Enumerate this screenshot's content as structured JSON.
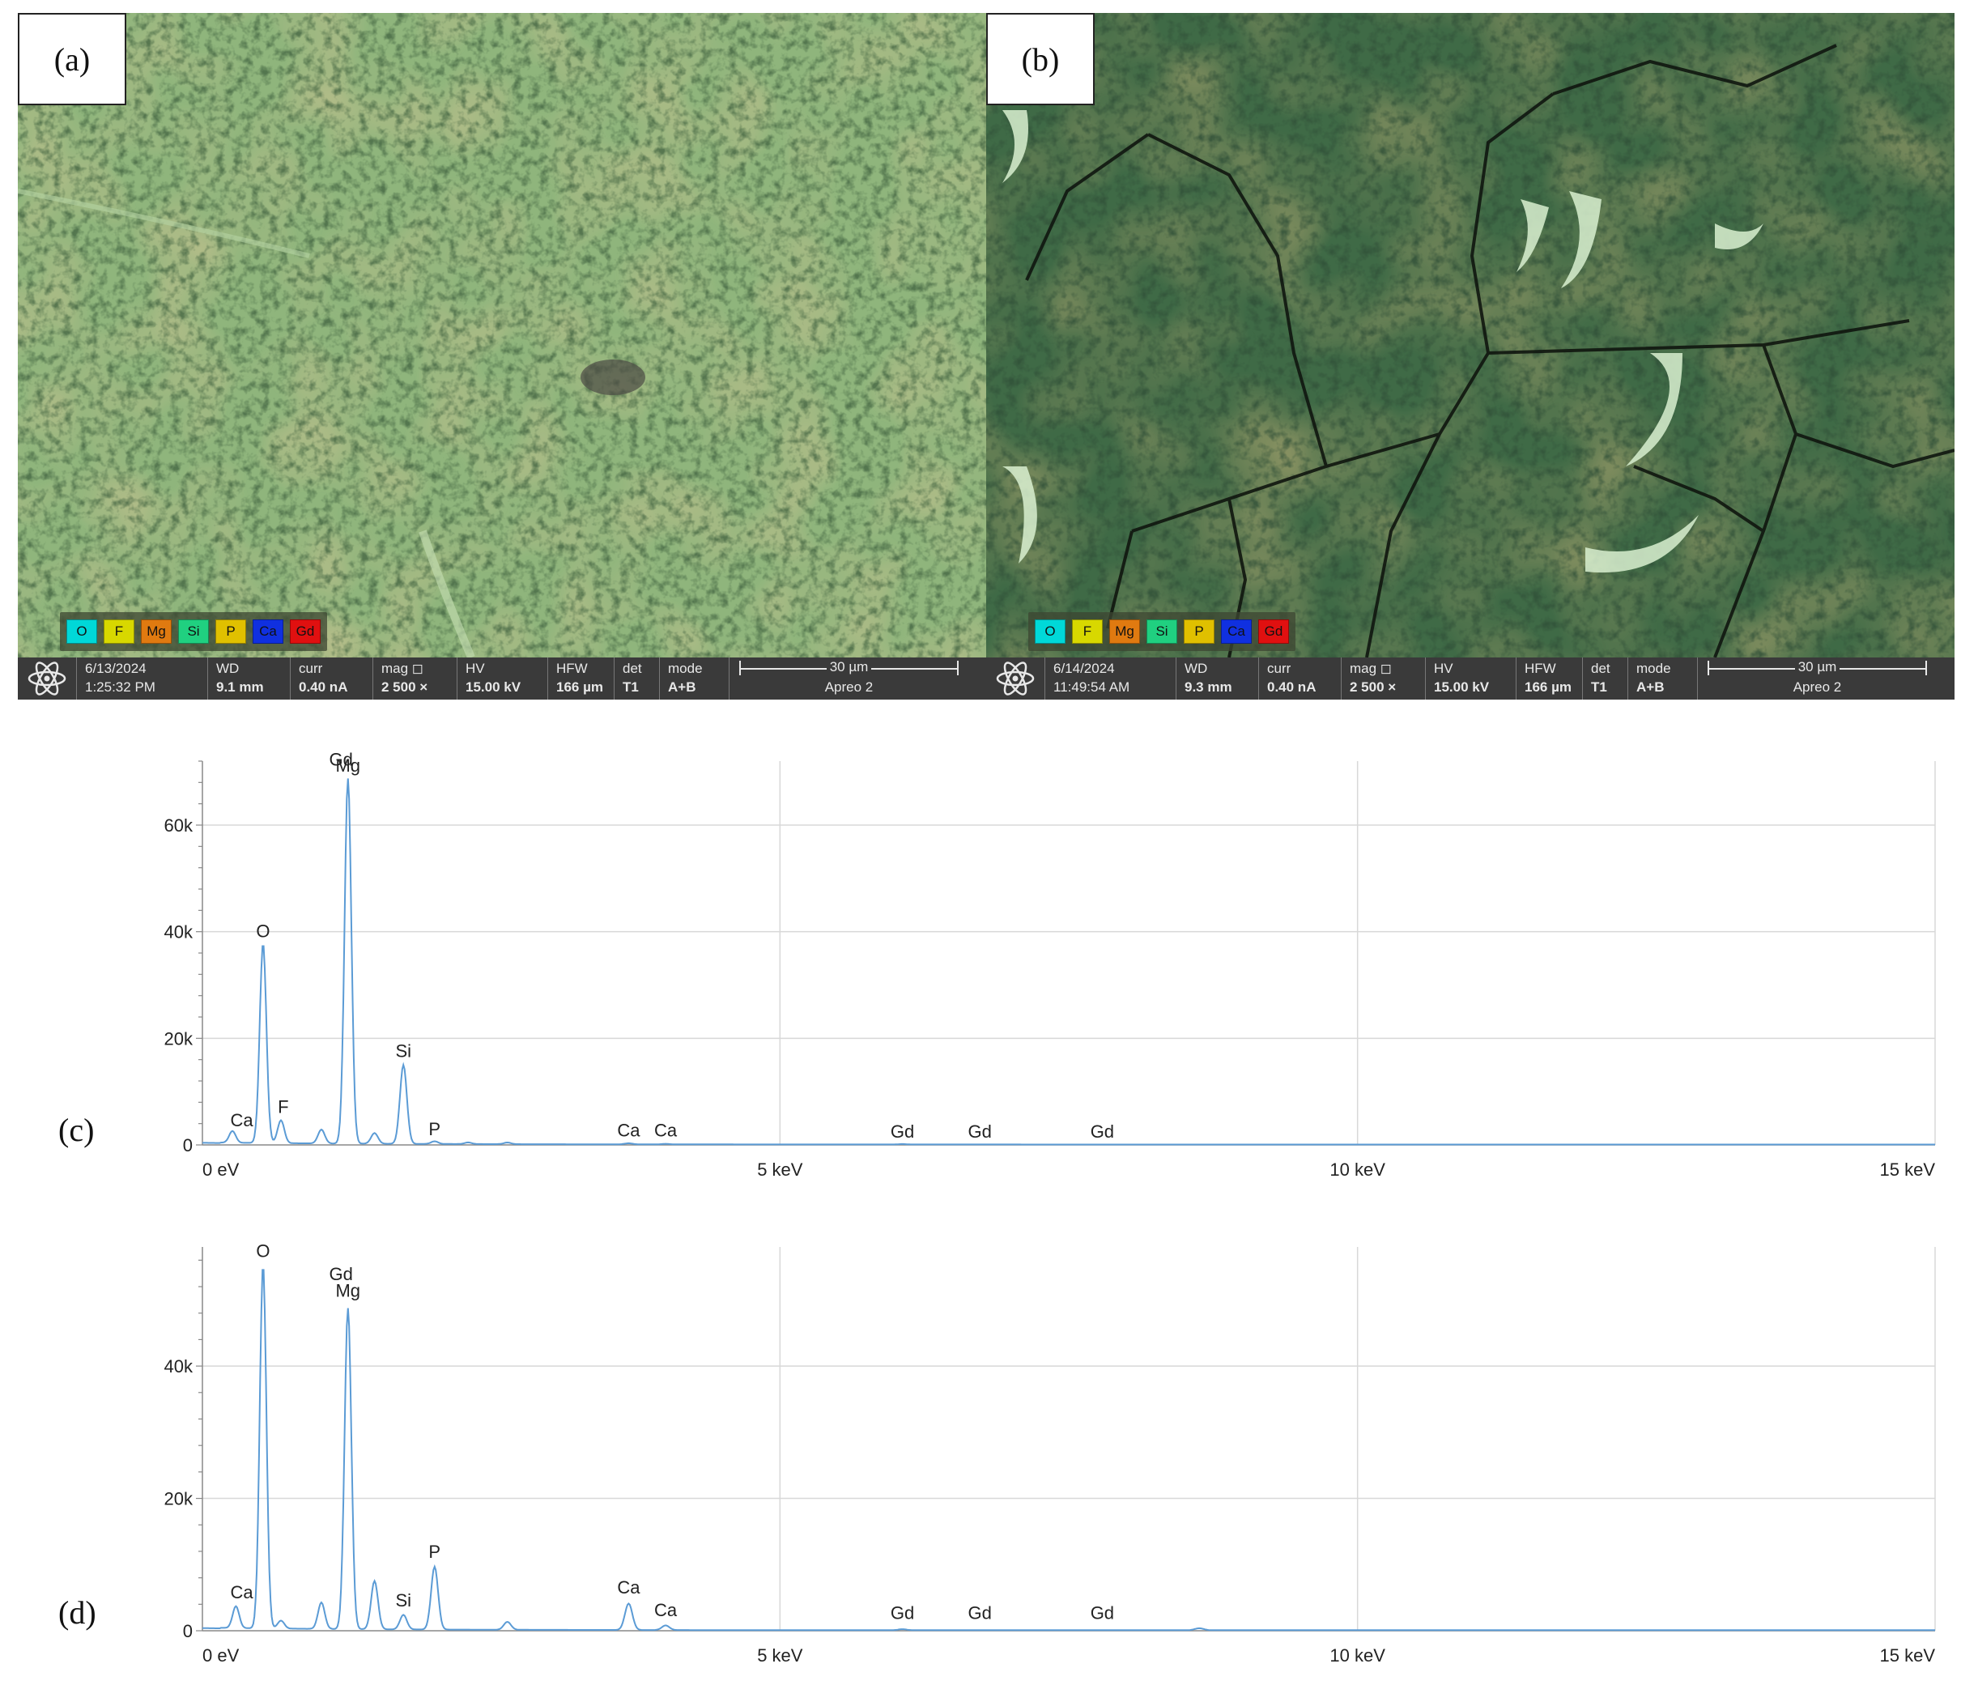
{
  "panels": [
    {
      "label": "(a)",
      "legend": [
        {
          "el": "O",
          "color": "#00d8d8"
        },
        {
          "el": "F",
          "color": "#d8d800"
        },
        {
          "el": "Mg",
          "color": "#e07a10"
        },
        {
          "el": "Si",
          "color": "#20d080"
        },
        {
          "el": "P",
          "color": "#e0c000"
        },
        {
          "el": "Ca",
          "color": "#1030e0"
        },
        {
          "el": "Gd",
          "color": "#e01010"
        }
      ],
      "info": {
        "date": "6/13/2024",
        "time": "1:25:32 PM",
        "wd_label": "WD",
        "wd": "9.1 mm",
        "curr_label": "curr",
        "curr": "0.40 nA",
        "mag_label": "mag ◻",
        "mag": "2 500 ×",
        "hv_label": "HV",
        "hv": "15.00 kV",
        "hfw_label": "HFW",
        "hfw": "166 µm",
        "det_label": "det",
        "det": "T1",
        "mode_label": "mode",
        "mode": "A+B",
        "scale": "30 µm",
        "instrument": "Apreo 2"
      }
    },
    {
      "label": "(b)",
      "legend": [
        {
          "el": "O",
          "color": "#00d8d8"
        },
        {
          "el": "F",
          "color": "#d8d800"
        },
        {
          "el": "Mg",
          "color": "#e07a10"
        },
        {
          "el": "Si",
          "color": "#20d080"
        },
        {
          "el": "P",
          "color": "#e0c000"
        },
        {
          "el": "Ca",
          "color": "#1030e0"
        },
        {
          "el": "Gd",
          "color": "#e01010"
        }
      ],
      "info": {
        "date": "6/14/2024",
        "time": "11:49:54 AM",
        "wd_label": "WD",
        "wd": "9.3 mm",
        "curr_label": "curr",
        "curr": "0.40 nA",
        "mag_label": "mag ◻",
        "mag": "2 500 ×",
        "hv_label": "HV",
        "hv": "15.00 kV",
        "hfw_label": "HFW",
        "hfw": "166 µm",
        "det_label": "det",
        "det": "T1",
        "mode_label": "mode",
        "mode": "A+B",
        "scale": "30 µm",
        "instrument": "Apreo 2"
      }
    }
  ],
  "chart_data": [
    {
      "type": "line",
      "tag": "(c)",
      "xlim": [
        0,
        15
      ],
      "ylim": [
        0,
        72000
      ],
      "x_ticks": [
        0,
        5,
        10,
        15
      ],
      "x_tick_labels": [
        "0 eV",
        "5 keV",
        "10 keV",
        "15 keV"
      ],
      "y_ticks": [
        0,
        20000,
        40000,
        60000
      ],
      "y_tick_labels": [
        "0",
        "20k",
        "40k",
        "60k"
      ],
      "grid": true,
      "line_color": "#5b9bd5",
      "peaks": [
        {
          "x": 0.26,
          "y": 2200
        },
        {
          "x": 0.525,
          "y": 37500
        },
        {
          "x": 0.68,
          "y": 4300
        },
        {
          "x": 1.03,
          "y": 2600
        },
        {
          "x": 1.26,
          "y": 68500
        },
        {
          "x": 1.49,
          "y": 2000
        },
        {
          "x": 1.74,
          "y": 14800
        },
        {
          "x": 2.01,
          "y": 500
        },
        {
          "x": 2.3,
          "y": 300
        },
        {
          "x": 2.64,
          "y": 300
        },
        {
          "x": 3.69,
          "y": 200
        },
        {
          "x": 4.01,
          "y": 100
        },
        {
          "x": 6.06,
          "y": 80
        }
      ],
      "labels": [
        {
          "text": "Gd",
          "x": 1.2,
          "y": 71200
        },
        {
          "text": "Mg",
          "x": 1.26,
          "y": 70000
        },
        {
          "text": "O",
          "x": 0.525,
          "y": 39000
        },
        {
          "text": "Si",
          "x": 1.74,
          "y": 16500
        },
        {
          "text": "F",
          "x": 0.7,
          "y": 6000
        },
        {
          "text": "Ca",
          "x": 0.34,
          "y": 3500
        },
        {
          "text": "P",
          "x": 2.01,
          "y": 1800
        },
        {
          "text": "Ca",
          "x": 3.69,
          "y": 1600
        },
        {
          "text": "Ca",
          "x": 4.01,
          "y": 1600
        },
        {
          "text": "Gd",
          "x": 6.06,
          "y": 1400
        },
        {
          "text": "Gd",
          "x": 6.73,
          "y": 1400
        },
        {
          "text": "Gd",
          "x": 7.79,
          "y": 1400
        }
      ]
    },
    {
      "type": "line",
      "tag": "(d)",
      "xlim": [
        0,
        15
      ],
      "ylim": [
        0,
        58000
      ],
      "x_ticks": [
        0,
        5,
        10,
        15
      ],
      "x_tick_labels": [
        "0 eV",
        "5 keV",
        "10 keV",
        "15 keV"
      ],
      "y_ticks": [
        0,
        20000,
        40000
      ],
      "y_tick_labels": [
        "0",
        "20k",
        "40k"
      ],
      "grid": true,
      "line_color": "#5b9bd5",
      "peaks": [
        {
          "x": 0.29,
          "y": 3300
        },
        {
          "x": 0.525,
          "y": 55000
        },
        {
          "x": 0.68,
          "y": 1200
        },
        {
          "x": 1.03,
          "y": 4000
        },
        {
          "x": 1.26,
          "y": 48500
        },
        {
          "x": 1.49,
          "y": 7300
        },
        {
          "x": 1.74,
          "y": 2200
        },
        {
          "x": 2.01,
          "y": 9500
        },
        {
          "x": 2.64,
          "y": 1200
        },
        {
          "x": 3.69,
          "y": 4000
        },
        {
          "x": 4.01,
          "y": 700
        },
        {
          "x": 6.06,
          "y": 150
        },
        {
          "x": 8.63,
          "y": 300
        }
      ],
      "labels": [
        {
          "text": "O",
          "x": 0.525,
          "y": 56500
        },
        {
          "text": "Gd",
          "x": 1.2,
          "y": 53000
        },
        {
          "text": "Mg",
          "x": 1.26,
          "y": 50500
        },
        {
          "text": "P",
          "x": 2.01,
          "y": 11000
        },
        {
          "text": "Ca",
          "x": 0.34,
          "y": 4900
        },
        {
          "text": "Si",
          "x": 1.74,
          "y": 3700
        },
        {
          "text": "Ca",
          "x": 3.69,
          "y": 5600
        },
        {
          "text": "Ca",
          "x": 4.01,
          "y": 2200
        },
        {
          "text": "Gd",
          "x": 6.06,
          "y": 1800
        },
        {
          "text": "Gd",
          "x": 6.73,
          "y": 1800
        },
        {
          "text": "Gd",
          "x": 7.79,
          "y": 1800
        }
      ]
    }
  ]
}
